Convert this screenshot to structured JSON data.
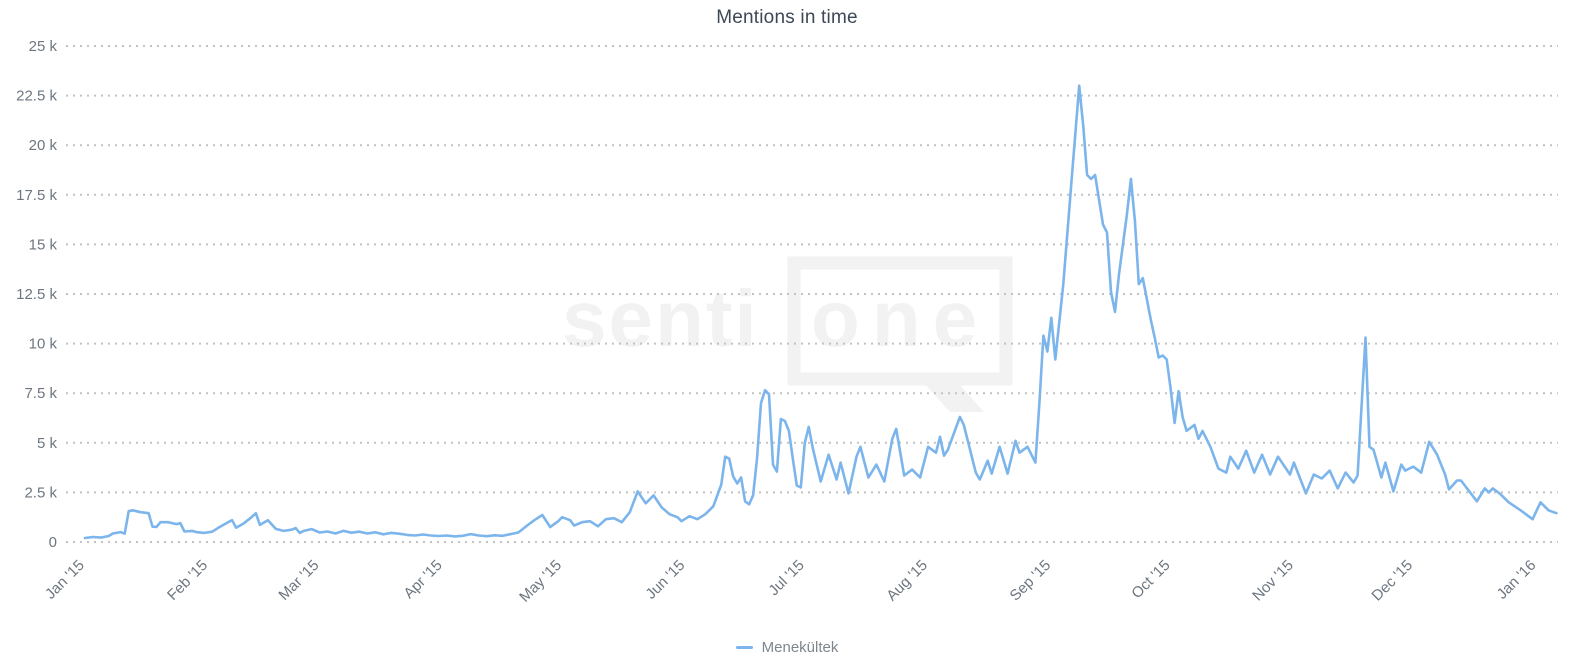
{
  "chart": {
    "title": "Mentions in time",
    "legend": {
      "items": [
        {
          "label": "Menekültek",
          "color": "#7cb5ec"
        }
      ]
    },
    "watermark": {
      "left_text": "senti",
      "bubble_text": "one"
    }
  },
  "colors": {
    "series_line": "#7cb5ec",
    "title_text": "#3d4856",
    "axis_label_text": "#6d7680",
    "legend_text": "#7e868e",
    "gridline": "#c2c2c2",
    "watermark": "#f2f2f2",
    "background": "#ffffff"
  },
  "chart_data": {
    "type": "line",
    "title": "Mentions in time",
    "grid": {
      "horizontal": "dotted",
      "vertical": "none"
    },
    "legend_position": "bottom-center",
    "y_axis": {
      "min": 0,
      "max": 25000,
      "tick_interval": 2500,
      "ticks": [
        {
          "value": 0,
          "label": "0"
        },
        {
          "value": 2500,
          "label": "2.5 k"
        },
        {
          "value": 5000,
          "label": "5 k"
        },
        {
          "value": 7500,
          "label": "7.5 k"
        },
        {
          "value": 10000,
          "label": "10 k"
        },
        {
          "value": 12500,
          "label": "12.5 k"
        },
        {
          "value": 15000,
          "label": "15 k"
        },
        {
          "value": 17500,
          "label": "17.5 k"
        },
        {
          "value": 20000,
          "label": "20 k"
        },
        {
          "value": 22500,
          "label": "22.5 k"
        },
        {
          "value": 25000,
          "label": "25 k"
        }
      ]
    },
    "x_axis": {
      "unit": "days since 2015-01-01",
      "label_rotation_deg": -45,
      "ticks": [
        {
          "label": "Jan '15",
          "day": 0
        },
        {
          "label": "Feb '15",
          "day": 31
        },
        {
          "label": "Mar '15",
          "day": 59
        },
        {
          "label": "Apr '15",
          "day": 90
        },
        {
          "label": "May '15",
          "day": 120
        },
        {
          "label": "Jun '15",
          "day": 151
        },
        {
          "label": "Jul '15",
          "day": 181
        },
        {
          "label": "Aug '15",
          "day": 212
        },
        {
          "label": "Sep '15",
          "day": 243
        },
        {
          "label": "Oct '15",
          "day": 273
        },
        {
          "label": "Nov '15",
          "day": 304
        },
        {
          "label": "Dec '15",
          "day": 334
        },
        {
          "label": "Jan '16",
          "day": 365
        }
      ]
    },
    "series": [
      {
        "name": "Menekültek",
        "color": "#7cb5ec",
        "points_day_value": [
          [
            3,
            200
          ],
          [
            5,
            250
          ],
          [
            7,
            220
          ],
          [
            9,
            300
          ],
          [
            10,
            430
          ],
          [
            12,
            500
          ],
          [
            13,
            420
          ],
          [
            14,
            1550
          ],
          [
            15,
            1600
          ],
          [
            17,
            1500
          ],
          [
            19,
            1450
          ],
          [
            20,
            770
          ],
          [
            21,
            760
          ],
          [
            22,
            1000
          ],
          [
            24,
            1000
          ],
          [
            25,
            950
          ],
          [
            26,
            900
          ],
          [
            27,
            950
          ],
          [
            28,
            530
          ],
          [
            30,
            560
          ],
          [
            31,
            500
          ],
          [
            33,
            460
          ],
          [
            35,
            520
          ],
          [
            37,
            770
          ],
          [
            39,
            1000
          ],
          [
            40,
            1100
          ],
          [
            41,
            720
          ],
          [
            43,
            950
          ],
          [
            45,
            1270
          ],
          [
            46,
            1450
          ],
          [
            47,
            860
          ],
          [
            49,
            1100
          ],
          [
            51,
            660
          ],
          [
            53,
            560
          ],
          [
            55,
            620
          ],
          [
            56,
            700
          ],
          [
            57,
            460
          ],
          [
            58,
            560
          ],
          [
            60,
            650
          ],
          [
            62,
            480
          ],
          [
            64,
            530
          ],
          [
            66,
            430
          ],
          [
            68,
            560
          ],
          [
            70,
            470
          ],
          [
            72,
            520
          ],
          [
            74,
            430
          ],
          [
            76,
            490
          ],
          [
            78,
            390
          ],
          [
            80,
            460
          ],
          [
            82,
            420
          ],
          [
            84,
            360
          ],
          [
            86,
            330
          ],
          [
            88,
            380
          ],
          [
            90,
            330
          ],
          [
            92,
            300
          ],
          [
            94,
            330
          ],
          [
            96,
            280
          ],
          [
            98,
            310
          ],
          [
            100,
            400
          ],
          [
            102,
            330
          ],
          [
            104,
            290
          ],
          [
            106,
            340
          ],
          [
            108,
            310
          ],
          [
            110,
            400
          ],
          [
            112,
            480
          ],
          [
            114,
            800
          ],
          [
            116,
            1100
          ],
          [
            118,
            1360
          ],
          [
            120,
            750
          ],
          [
            122,
            1050
          ],
          [
            123,
            1250
          ],
          [
            125,
            1100
          ],
          [
            126,
            830
          ],
          [
            128,
            1000
          ],
          [
            130,
            1050
          ],
          [
            132,
            790
          ],
          [
            134,
            1150
          ],
          [
            136,
            1200
          ],
          [
            138,
            1000
          ],
          [
            140,
            1500
          ],
          [
            142,
            2550
          ],
          [
            144,
            1950
          ],
          [
            146,
            2350
          ],
          [
            148,
            1750
          ],
          [
            150,
            1400
          ],
          [
            152,
            1250
          ],
          [
            153,
            1050
          ],
          [
            155,
            1300
          ],
          [
            157,
            1150
          ],
          [
            159,
            1400
          ],
          [
            161,
            1800
          ],
          [
            163,
            2900
          ],
          [
            164,
            4300
          ],
          [
            165,
            4200
          ],
          [
            166,
            3300
          ],
          [
            167,
            2950
          ],
          [
            168,
            3250
          ],
          [
            169,
            2050
          ],
          [
            170,
            1900
          ],
          [
            171,
            2350
          ],
          [
            172,
            4200
          ],
          [
            173,
            7000
          ],
          [
            174,
            7650
          ],
          [
            175,
            7450
          ],
          [
            176,
            3900
          ],
          [
            177,
            3550
          ],
          [
            178,
            6200
          ],
          [
            179,
            6100
          ],
          [
            180,
            5600
          ],
          [
            181,
            4200
          ],
          [
            182,
            2850
          ],
          [
            183,
            2750
          ],
          [
            184,
            5000
          ],
          [
            185,
            5800
          ],
          [
            186,
            4750
          ],
          [
            188,
            3050
          ],
          [
            190,
            4400
          ],
          [
            192,
            3150
          ],
          [
            193,
            4000
          ],
          [
            195,
            2450
          ],
          [
            197,
            4300
          ],
          [
            198,
            4800
          ],
          [
            200,
            3250
          ],
          [
            202,
            3900
          ],
          [
            204,
            3050
          ],
          [
            206,
            5200
          ],
          [
            207,
            5700
          ],
          [
            209,
            3350
          ],
          [
            211,
            3650
          ],
          [
            213,
            3250
          ],
          [
            215,
            4800
          ],
          [
            217,
            4500
          ],
          [
            218,
            5300
          ],
          [
            219,
            4350
          ],
          [
            220,
            4650
          ],
          [
            223,
            6300
          ],
          [
            224,
            5900
          ],
          [
            227,
            3500
          ],
          [
            228,
            3150
          ],
          [
            230,
            4100
          ],
          [
            231,
            3450
          ],
          [
            233,
            4800
          ],
          [
            235,
            3450
          ],
          [
            237,
            5100
          ],
          [
            238,
            4500
          ],
          [
            240,
            4800
          ],
          [
            242,
            4000
          ],
          [
            243,
            7000
          ],
          [
            244,
            10400
          ],
          [
            245,
            9600
          ],
          [
            246,
            11300
          ],
          [
            247,
            9200
          ],
          [
            249,
            13000
          ],
          [
            251,
            18000
          ],
          [
            253,
            23000
          ],
          [
            254,
            21000
          ],
          [
            255,
            18500
          ],
          [
            256,
            18300
          ],
          [
            257,
            18500
          ],
          [
            259,
            16000
          ],
          [
            260,
            15600
          ],
          [
            261,
            12600
          ],
          [
            262,
            11600
          ],
          [
            263,
            13500
          ],
          [
            265,
            16500
          ],
          [
            266,
            18300
          ],
          [
            267,
            16200
          ],
          [
            268,
            13000
          ],
          [
            269,
            13300
          ],
          [
            271,
            11200
          ],
          [
            272,
            10300
          ],
          [
            273,
            9300
          ],
          [
            274,
            9400
          ],
          [
            275,
            9200
          ],
          [
            276,
            7700
          ],
          [
            277,
            6000
          ],
          [
            278,
            7600
          ],
          [
            279,
            6300
          ],
          [
            280,
            5600
          ],
          [
            282,
            5900
          ],
          [
            283,
            5200
          ],
          [
            284,
            5600
          ],
          [
            286,
            4800
          ],
          [
            288,
            3700
          ],
          [
            290,
            3500
          ],
          [
            291,
            4300
          ],
          [
            293,
            3700
          ],
          [
            295,
            4600
          ],
          [
            297,
            3500
          ],
          [
            299,
            4400
          ],
          [
            301,
            3400
          ],
          [
            303,
            4300
          ],
          [
            306,
            3400
          ],
          [
            307,
            4000
          ],
          [
            310,
            2450
          ],
          [
            312,
            3400
          ],
          [
            314,
            3200
          ],
          [
            316,
            3600
          ],
          [
            318,
            2700
          ],
          [
            320,
            3500
          ],
          [
            322,
            3000
          ],
          [
            323,
            3350
          ],
          [
            325,
            10300
          ],
          [
            326,
            4800
          ],
          [
            327,
            4650
          ],
          [
            329,
            3250
          ],
          [
            330,
            4000
          ],
          [
            332,
            2550
          ],
          [
            334,
            3900
          ],
          [
            335,
            3600
          ],
          [
            337,
            3800
          ],
          [
            339,
            3500
          ],
          [
            341,
            5050
          ],
          [
            343,
            4400
          ],
          [
            345,
            3400
          ],
          [
            346,
            2650
          ],
          [
            348,
            3100
          ],
          [
            349,
            3100
          ],
          [
            353,
            2050
          ],
          [
            355,
            2700
          ],
          [
            356,
            2500
          ],
          [
            357,
            2700
          ],
          [
            359,
            2400
          ],
          [
            361,
            2000
          ],
          [
            364,
            1600
          ],
          [
            367,
            1150
          ],
          [
            369,
            2000
          ],
          [
            371,
            1600
          ],
          [
            373,
            1450
          ]
        ]
      }
    ]
  }
}
